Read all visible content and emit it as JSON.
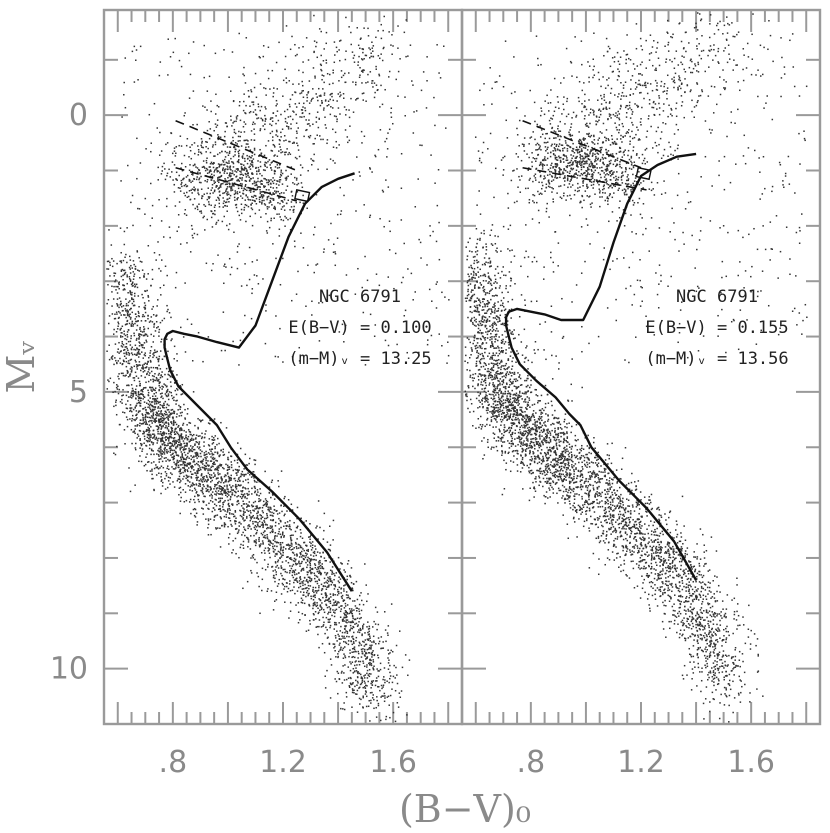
{
  "chart_data": [
    {
      "type": "scatter",
      "panel": "left",
      "xlabel": "(B−V)₀",
      "ylabel": "Mᵥ",
      "xlim": [
        0.55,
        1.85
      ],
      "ylim": [
        11.0,
        -1.9
      ],
      "y_inverted": true,
      "x_tick_labels": [
        ".8",
        "1.2",
        "1.6"
      ],
      "y_tick_labels": [
        "0",
        "5",
        "10"
      ],
      "grid": false,
      "annotations": [
        "NGC 6791",
        "E(B−V) = 0.100",
        "(m−M)ᵥ = 13.25"
      ],
      "series": [
        {
          "kind": "isochrone",
          "x": [
            1.45,
            1.36,
            1.26,
            1.16,
            1.07,
            1.04,
            1.01,
            0.96,
            0.88,
            0.82,
            0.79,
            0.78,
            0.77,
            0.77,
            0.78,
            0.8,
            0.84,
            0.89,
            0.96,
            1.04,
            1.1,
            1.16,
            1.22,
            1.28,
            1.34,
            1.4,
            1.46
          ],
          "y": [
            8.6,
            7.9,
            7.3,
            6.8,
            6.4,
            6.2,
            6.0,
            5.6,
            5.2,
            4.9,
            4.6,
            4.4,
            4.2,
            4.05,
            3.95,
            3.9,
            3.95,
            4.0,
            4.1,
            4.2,
            3.8,
            3.0,
            2.2,
            1.6,
            1.3,
            1.15,
            1.05
          ]
        },
        {
          "kind": "dashed-line",
          "x": [
            0.81,
            1.25
          ],
          "y": [
            0.1,
            1.0
          ]
        },
        {
          "kind": "dashed-line",
          "x": [
            0.81,
            1.25
          ],
          "y": [
            0.95,
            1.55
          ]
        }
      ],
      "points": [
        {
          "kind": "main-sequence",
          "x": [
            0.62,
            0.64,
            0.66,
            0.68,
            0.7,
            0.72,
            0.74,
            0.78,
            0.82,
            0.86,
            0.9,
            0.95,
            1.0,
            1.06,
            1.12,
            1.18,
            1.24,
            1.3,
            1.36,
            1.42,
            1.47,
            1.5,
            1.53
          ],
          "y": [
            2.8,
            3.4,
            4.0,
            4.6,
            5.1,
            5.4,
            5.6,
            5.8,
            6.0,
            6.2,
            6.4,
            6.6,
            6.8,
            7.1,
            7.4,
            7.7,
            8.0,
            8.3,
            8.6,
            9.0,
            9.5,
            10.0,
            10.6
          ]
        },
        {
          "kind": "giant-branch",
          "x": [
            0.86,
            0.9,
            0.95,
            1.0,
            1.05,
            1.1,
            1.15,
            1.2,
            1.25,
            1.32,
            1.4,
            1.48,
            1.55
          ],
          "y": [
            1.4,
            1.2,
            1.0,
            0.9,
            0.7,
            0.5,
            0.3,
            0.1,
            -0.1,
            -0.4,
            -0.7,
            -1.0,
            -1.2
          ]
        },
        {
          "kind": "red-clump",
          "x": [
            0.9,
            0.95,
            1.0,
            1.05,
            1.1,
            1.15,
            1.2
          ],
          "y": [
            1.0,
            1.1,
            1.2,
            1.15,
            1.25,
            1.3,
            1.4
          ]
        }
      ]
    },
    {
      "type": "scatter",
      "panel": "right",
      "xlabel": "(B−V)₀",
      "ylabel": "Mᵥ",
      "xlim": [
        0.55,
        1.85
      ],
      "ylim": [
        11.0,
        -1.9
      ],
      "y_inverted": true,
      "x_tick_labels": [
        ".8",
        "1.2",
        "1.6"
      ],
      "y_tick_labels": [
        "0",
        "5",
        "10"
      ],
      "grid": false,
      "annotations": [
        "NGC 6791",
        "E(B−V) = 0.155",
        "(m−M)ᵥ = 13.56"
      ],
      "series": [
        {
          "kind": "isochrone",
          "x": [
            1.4,
            1.32,
            1.22,
            1.12,
            1.02,
            0.98,
            0.94,
            0.89,
            0.82,
            0.76,
            0.73,
            0.72,
            0.71,
            0.71,
            0.72,
            0.75,
            0.8,
            0.85,
            0.91,
            0.99,
            1.05,
            1.1,
            1.15,
            1.2,
            1.26,
            1.33,
            1.4
          ],
          "y": [
            8.4,
            7.7,
            7.1,
            6.6,
            6.0,
            5.6,
            5.4,
            5.1,
            4.8,
            4.5,
            4.2,
            4.0,
            3.8,
            3.65,
            3.55,
            3.5,
            3.55,
            3.6,
            3.7,
            3.7,
            3.1,
            2.3,
            1.6,
            1.1,
            0.9,
            0.75,
            0.7
          ]
        },
        {
          "kind": "dashed-line",
          "x": [
            0.77,
            1.2
          ],
          "y": [
            0.1,
            0.95
          ]
        },
        {
          "kind": "dashed-line",
          "x": [
            0.77,
            1.22
          ],
          "y": [
            0.95,
            1.35
          ]
        }
      ],
      "points": [
        {
          "kind": "main-sequence",
          "x": [
            0.59,
            0.61,
            0.63,
            0.65,
            0.67,
            0.69,
            0.71,
            0.75,
            0.79,
            0.83,
            0.87,
            0.92,
            0.97,
            1.03,
            1.09,
            1.15,
            1.21,
            1.27,
            1.33,
            1.39,
            1.44,
            1.47,
            1.5
          ],
          "y": [
            2.5,
            3.1,
            3.7,
            4.3,
            4.8,
            5.1,
            5.3,
            5.5,
            5.7,
            5.9,
            6.1,
            6.3,
            6.5,
            6.8,
            7.1,
            7.4,
            7.7,
            8.0,
            8.3,
            8.7,
            9.2,
            9.7,
            10.3
          ]
        },
        {
          "kind": "giant-branch",
          "x": [
            0.82,
            0.86,
            0.91,
            0.96,
            1.01,
            1.06,
            1.11,
            1.16,
            1.21,
            1.28,
            1.36,
            1.44,
            1.51
          ],
          "y": [
            1.1,
            0.9,
            0.7,
            0.6,
            0.4,
            0.2,
            0.0,
            -0.2,
            -0.4,
            -0.7,
            -1.0,
            -1.3,
            -1.5
          ]
        },
        {
          "kind": "red-clump",
          "x": [
            0.86,
            0.91,
            0.96,
            1.01,
            1.06,
            1.11,
            1.16
          ],
          "y": [
            0.7,
            0.8,
            0.9,
            0.85,
            0.95,
            1.0,
            1.1
          ]
        }
      ]
    }
  ]
}
